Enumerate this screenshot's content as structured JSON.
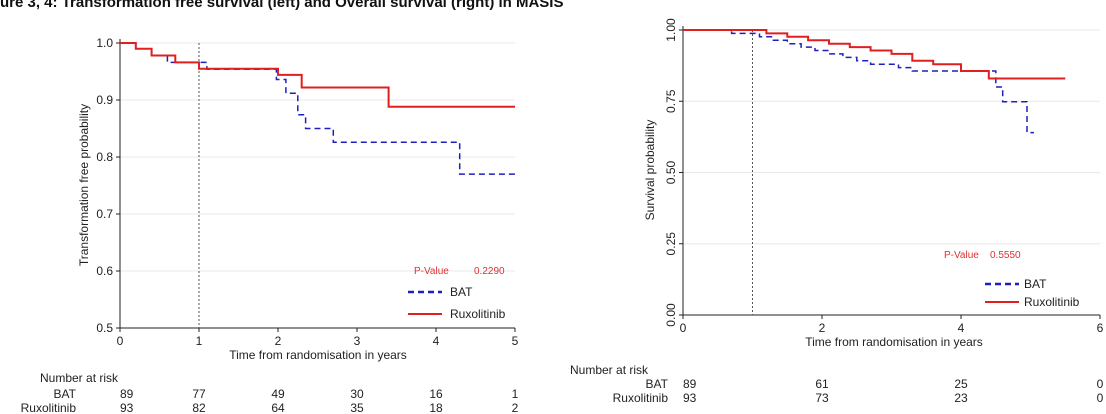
{
  "figure_title": "ure 3, 4: Transformation free survival (left) and Overall survival (right) in MASIS",
  "colors": {
    "bat": "#1f1fc0",
    "ruxolitinib": "#e02020",
    "pvalue": "#e03030",
    "axis": "#222222",
    "grid": "#e8e8e8"
  },
  "chart_data": [
    {
      "type": "line",
      "xlabel": "Time from randomisation in years",
      "ylabel": "Transformation free probability",
      "xlim": [
        0,
        5
      ],
      "ylim": [
        0.5,
        1.0
      ],
      "x_ticks": [
        "0",
        "1",
        "2",
        "3",
        "4",
        "5"
      ],
      "y_ticks": [
        "0.5",
        "0.6",
        "0.7",
        "0.8",
        "0.9",
        "1.0"
      ],
      "grid": true,
      "reference_line_x": 1,
      "pvalue_label": "P-Value",
      "pvalue": "0.2290",
      "legend_position": "bottom-right",
      "series": [
        {
          "name": "BAT",
          "style": "dashed",
          "x": [
            0,
            0.2,
            0.4,
            0.6,
            1.0,
            1.1,
            1.9,
            1.98,
            2.1,
            2.25,
            2.35,
            2.5,
            2.7,
            4.2,
            4.3,
            5.0
          ],
          "y": [
            1.0,
            0.99,
            0.978,
            0.966,
            0.966,
            0.954,
            0.954,
            0.936,
            0.912,
            0.874,
            0.85,
            0.85,
            0.826,
            0.826,
            0.77,
            0.77
          ]
        },
        {
          "name": "Ruxolitinib",
          "style": "solid",
          "x": [
            0,
            0.2,
            0.4,
            0.5,
            0.7,
            1.0,
            2.0,
            2.3,
            3.4,
            5.0
          ],
          "y": [
            1.0,
            0.99,
            0.978,
            0.978,
            0.966,
            0.955,
            0.944,
            0.922,
            0.888,
            0.888
          ]
        }
      ],
      "risk_table": {
        "header": "Number at risk",
        "times": [
          0,
          1,
          2,
          3,
          4,
          5
        ],
        "rows": [
          {
            "label": "BAT",
            "values": [
              "89",
              "77",
              "49",
              "30",
              "16",
              "1"
            ]
          },
          {
            "label": "Ruxolitinib",
            "values": [
              "93",
              "82",
              "64",
              "35",
              "18",
              "2"
            ]
          }
        ]
      }
    },
    {
      "type": "line",
      "xlabel": "Time from randomisation in years",
      "ylabel": "Survival probability",
      "xlim": [
        0,
        6
      ],
      "ylim": [
        0,
        1.0
      ],
      "x_ticks": [
        "0",
        "2",
        "4",
        "6"
      ],
      "y_ticks": [
        "0.00",
        "0.25",
        "0.50",
        "0.75",
        "1.00"
      ],
      "grid": true,
      "reference_line_x": 1,
      "pvalue_label": "P-Value",
      "pvalue": "0.5550",
      "legend_position": "bottom-right",
      "series": [
        {
          "name": "BAT",
          "style": "dashed",
          "x": [
            0,
            0.7,
            1.1,
            1.3,
            1.5,
            1.7,
            1.9,
            2.1,
            2.3,
            2.5,
            2.7,
            2.9,
            3.1,
            3.3,
            3.5,
            4.4,
            4.5,
            4.6,
            4.95,
            5.05
          ],
          "y": [
            1.0,
            0.988,
            0.976,
            0.964,
            0.952,
            0.94,
            0.928,
            0.916,
            0.904,
            0.892,
            0.88,
            0.88,
            0.868,
            0.856,
            0.856,
            0.856,
            0.8,
            0.748,
            0.64,
            0.64
          ]
        },
        {
          "name": "Ruxolitinib",
          "style": "solid",
          "x": [
            0,
            1.0,
            1.2,
            1.5,
            1.8,
            2.1,
            2.4,
            2.7,
            3.0,
            3.3,
            3.6,
            4.0,
            4.4,
            5.5
          ],
          "y": [
            1.0,
            1.0,
            0.988,
            0.976,
            0.964,
            0.952,
            0.94,
            0.928,
            0.916,
            0.892,
            0.88,
            0.856,
            0.83,
            0.83
          ]
        }
      ],
      "risk_table": {
        "header": "Number at risk",
        "times": [
          0,
          2,
          4,
          6
        ],
        "rows": [
          {
            "label": "BAT",
            "values": [
              "89",
              "61",
              "25",
              "0"
            ]
          },
          {
            "label": "Ruxolitinib",
            "values": [
              "93",
              "73",
              "23",
              "0"
            ]
          }
        ]
      }
    }
  ]
}
